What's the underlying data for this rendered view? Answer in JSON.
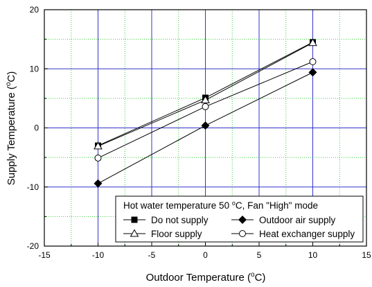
{
  "chart_data": {
    "type": "line",
    "xlabel": "Outdoor Temperature (",
    "xlabel_sup": "o",
    "xlabel_end": "C)",
    "ylabel": "Supply Temperature (",
    "ylabel_sup": "o",
    "ylabel_end": "C)",
    "xlim": [
      -15,
      15
    ],
    "ylim": [
      -20,
      20
    ],
    "xticks": [
      -15,
      -10,
      -5,
      0,
      5,
      10,
      15
    ],
    "yticks": [
      -20,
      -10,
      0,
      10,
      20
    ],
    "grid": true,
    "grid_major_color": "#3333cc",
    "grid_minor_color": "#33cc33",
    "legend_position": "bottom-right",
    "legend_title": "Hot water temperature 50 ",
    "legend_title_sup": "o",
    "legend_title_end": "C, Fan \"High\" mode",
    "x": [
      -10,
      0,
      10
    ],
    "series": [
      {
        "name": "Do not supply",
        "marker": "square-filled",
        "values": [
          -3.0,
          5.1,
          14.5
        ]
      },
      {
        "name": "Outdoor air supply",
        "marker": "diamond-filled",
        "values": [
          -9.4,
          0.4,
          9.4
        ]
      },
      {
        "name": "Floor supply",
        "marker": "triangle-open",
        "values": [
          -3.1,
          4.7,
          14.4
        ]
      },
      {
        "name": "Heat exchanger supply",
        "marker": "circle-open",
        "values": [
          -5.1,
          3.6,
          11.2
        ]
      }
    ]
  }
}
